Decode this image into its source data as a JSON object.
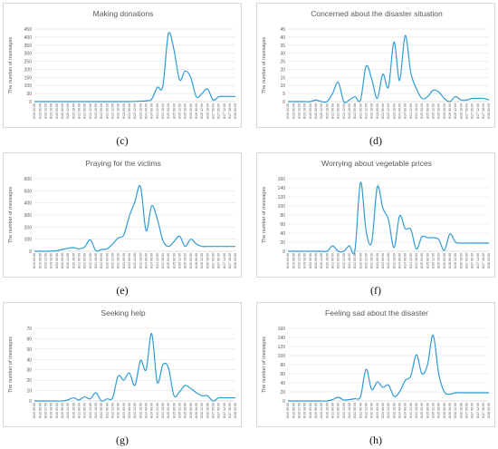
{
  "colors": {
    "line": "#2e9bd6",
    "grid": "#e3e3e3",
    "axis": "#bfbfbf",
    "text": "#595959"
  },
  "x_tick_labels": [
    "8/19 00:00",
    "8/19 06:00",
    "8/19 12:00",
    "8/19 18:00",
    "8/20 00:00",
    "8/20 06:00",
    "8/20 12:00",
    "8/20 18:00",
    "8/21 00:00",
    "8/21 06:00",
    "8/21 12:00",
    "8/21 18:00",
    "8/22 00:00",
    "8/22 06:00",
    "8/22 12:00",
    "8/22 18:00",
    "8/23 00:00",
    "8/23 06:00",
    "8/23 12:00",
    "8/23 18:00",
    "8/24 00:00",
    "8/24 06:00",
    "8/24 12:00",
    "8/24 18:00",
    "8/25 00:00",
    "8/25 06:00",
    "8/25 12:00",
    "8/25 18:00",
    "8/26 00:00",
    "8/26 06:00",
    "8/26 12:00",
    "8/26 18:00",
    "8/27 00:00",
    "8/27 06:00",
    "8/27 12:00",
    "8/27 18:00",
    "8/28 00:00"
  ],
  "chart_data": [
    {
      "type": "line",
      "caption": "(c)",
      "title": "Making donations",
      "ylabel": "The number of messages",
      "ylim": [
        0,
        450
      ],
      "yticks": [
        0,
        50,
        100,
        150,
        200,
        250,
        300,
        350,
        400,
        450
      ],
      "series": [
        {
          "values": [
            0,
            0,
            0,
            0,
            0,
            0,
            0,
            0,
            0,
            0,
            0,
            0,
            0,
            0,
            0,
            0,
            0,
            0,
            1,
            3,
            5,
            15,
            88,
            95,
            420,
            320,
            135,
            190,
            150,
            30,
            50,
            78,
            10,
            30,
            32,
            32,
            32
          ]
        }
      ]
    },
    {
      "type": "line",
      "caption": "(d)",
      "title": "Concerned about the disaster situation",
      "ylabel": "The number of messages",
      "ylim": [
        0,
        45
      ],
      "yticks": [
        0,
        5,
        10,
        15,
        20,
        25,
        30,
        35,
        40,
        45
      ],
      "series": [
        {
          "values": [
            0,
            0,
            0,
            0,
            0,
            1,
            0,
            0,
            5,
            12,
            0,
            1,
            3,
            1,
            22,
            14,
            2,
            17,
            9,
            37,
            13,
            41,
            18,
            8,
            2,
            3,
            7,
            6,
            2,
            0,
            3,
            1,
            1,
            2,
            2,
            2,
            1
          ]
        }
      ]
    },
    {
      "type": "line",
      "caption": "(e)",
      "title": "Praying for the victims",
      "ylabel": "The number of messages",
      "ylim": [
        0,
        600
      ],
      "yticks": [
        0,
        100,
        200,
        300,
        400,
        500,
        600
      ],
      "series": [
        {
          "values": [
            0,
            0,
            0,
            2,
            5,
            15,
            25,
            30,
            20,
            35,
            95,
            5,
            15,
            20,
            60,
            110,
            135,
            290,
            410,
            535,
            170,
            375,
            270,
            90,
            40,
            80,
            125,
            40,
            100,
            60,
            40,
            40,
            40,
            40,
            40,
            40,
            40
          ]
        }
      ]
    },
    {
      "type": "line",
      "caption": "(f)",
      "title": "Worrying about vegetable prices",
      "ylabel": "The number of messages",
      "ylim": [
        0,
        160
      ],
      "yticks": [
        0,
        20,
        40,
        60,
        80,
        100,
        120,
        140,
        160
      ],
      "series": [
        {
          "values": [
            0,
            0,
            0,
            0,
            0,
            0,
            0,
            0,
            12,
            0,
            0,
            12,
            2,
            152,
            45,
            20,
            142,
            95,
            70,
            8,
            78,
            50,
            48,
            5,
            32,
            30,
            30,
            26,
            2,
            38,
            20,
            18,
            18,
            18,
            18,
            18,
            18
          ]
        }
      ]
    },
    {
      "type": "line",
      "caption": "(g)",
      "title": "Seeking help",
      "ylabel": "The number of messages",
      "ylim": [
        0,
        70
      ],
      "yticks": [
        0,
        10,
        20,
        30,
        40,
        50,
        60,
        70
      ],
      "series": [
        {
          "values": [
            0,
            0,
            0,
            0,
            0,
            0,
            1,
            3,
            1,
            4,
            2,
            8,
            0,
            2,
            3,
            24,
            20,
            27,
            15,
            39,
            30,
            65,
            18,
            35,
            32,
            5,
            9,
            15,
            12,
            8,
            5,
            5,
            0,
            3,
            3,
            3,
            3
          ]
        }
      ]
    },
    {
      "type": "line",
      "caption": "(h)",
      "title": "Feeling sad about the disaster",
      "ylabel": "The number of messages",
      "ylim": [
        0,
        160
      ],
      "yticks": [
        0,
        20,
        40,
        60,
        80,
        100,
        120,
        140,
        160
      ],
      "series": [
        {
          "values": [
            0,
            0,
            0,
            0,
            0,
            0,
            0,
            0,
            3,
            8,
            2,
            3,
            5,
            10,
            70,
            25,
            42,
            30,
            35,
            10,
            20,
            45,
            55,
            102,
            60,
            80,
            145,
            60,
            20,
            15,
            18,
            18,
            18,
            18,
            18,
            18,
            18
          ]
        }
      ]
    }
  ]
}
